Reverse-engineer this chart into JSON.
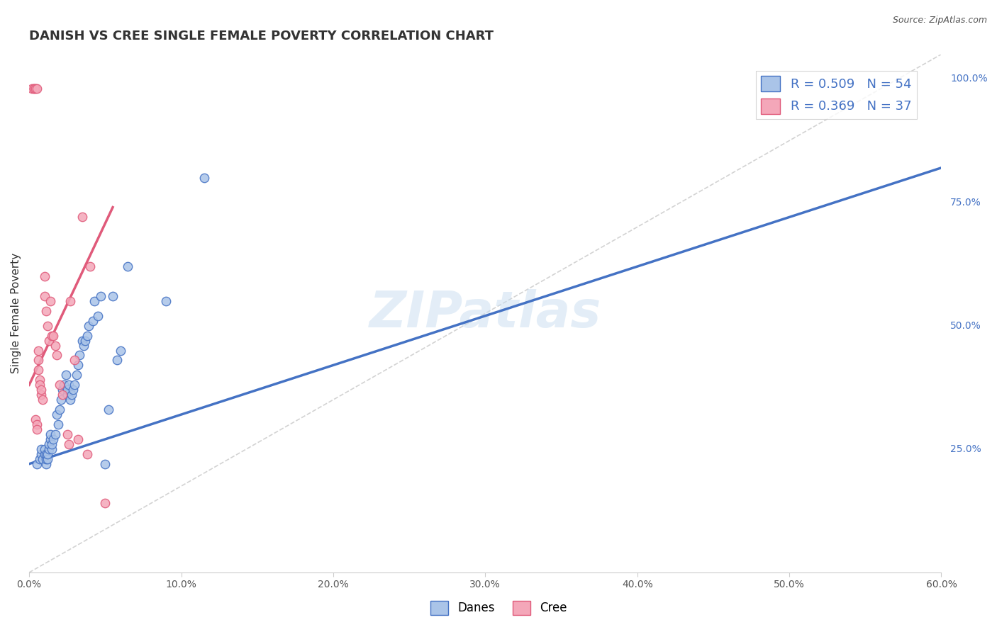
{
  "title": "DANISH VS CREE SINGLE FEMALE POVERTY CORRELATION CHART",
  "source": "Source: ZipAtlas.com",
  "ylabel": "Single Female Poverty",
  "watermark": "ZIPatlas",
  "legend_blue_label": "Danes",
  "legend_pink_label": "Cree",
  "blue_R": "0.509",
  "blue_N": "54",
  "pink_R": "0.369",
  "pink_N": "37",
  "blue_color": "#aac4e8",
  "pink_color": "#f4a7b9",
  "blue_line_color": "#4472c4",
  "pink_line_color": "#e05a7a",
  "diag_color": "#c8c8c8",
  "blue_scatter_x": [
    0.005,
    0.007,
    0.008,
    0.008,
    0.009,
    0.01,
    0.01,
    0.011,
    0.011,
    0.011,
    0.012,
    0.012,
    0.013,
    0.013,
    0.014,
    0.014,
    0.015,
    0.015,
    0.016,
    0.017,
    0.018,
    0.019,
    0.02,
    0.021,
    0.022,
    0.023,
    0.024,
    0.025,
    0.025,
    0.026,
    0.027,
    0.028,
    0.029,
    0.03,
    0.031,
    0.032,
    0.033,
    0.035,
    0.036,
    0.037,
    0.038,
    0.039,
    0.042,
    0.043,
    0.045,
    0.047,
    0.05,
    0.052,
    0.055,
    0.058,
    0.06,
    0.065,
    0.09,
    0.115
  ],
  "blue_scatter_y": [
    0.22,
    0.23,
    0.24,
    0.25,
    0.23,
    0.24,
    0.25,
    0.22,
    0.23,
    0.24,
    0.23,
    0.24,
    0.25,
    0.26,
    0.27,
    0.28,
    0.25,
    0.26,
    0.27,
    0.28,
    0.32,
    0.3,
    0.33,
    0.35,
    0.37,
    0.38,
    0.4,
    0.36,
    0.37,
    0.38,
    0.35,
    0.36,
    0.37,
    0.38,
    0.4,
    0.42,
    0.44,
    0.47,
    0.46,
    0.47,
    0.48,
    0.5,
    0.51,
    0.55,
    0.52,
    0.56,
    0.22,
    0.33,
    0.56,
    0.43,
    0.45,
    0.62,
    0.55,
    0.8
  ],
  "pink_scatter_x": [
    0.002,
    0.003,
    0.003,
    0.004,
    0.004,
    0.005,
    0.005,
    0.005,
    0.006,
    0.006,
    0.006,
    0.007,
    0.007,
    0.008,
    0.008,
    0.009,
    0.01,
    0.01,
    0.011,
    0.012,
    0.013,
    0.014,
    0.015,
    0.016,
    0.017,
    0.018,
    0.02,
    0.022,
    0.025,
    0.026,
    0.027,
    0.03,
    0.032,
    0.035,
    0.038,
    0.04,
    0.05
  ],
  "pink_scatter_y": [
    0.98,
    0.98,
    0.98,
    0.98,
    0.31,
    0.98,
    0.3,
    0.29,
    0.45,
    0.43,
    0.41,
    0.39,
    0.38,
    0.36,
    0.37,
    0.35,
    0.6,
    0.56,
    0.53,
    0.5,
    0.47,
    0.55,
    0.48,
    0.48,
    0.46,
    0.44,
    0.38,
    0.36,
    0.28,
    0.26,
    0.55,
    0.43,
    0.27,
    0.72,
    0.24,
    0.62,
    0.14
  ],
  "xlim": [
    0.0,
    0.6
  ],
  "ylim": [
    0.0,
    1.05
  ],
  "blue_line_x": [
    0.0,
    0.6
  ],
  "blue_line_y": [
    0.22,
    0.82
  ],
  "pink_line_x": [
    0.0,
    0.055
  ],
  "pink_line_y": [
    0.38,
    0.74
  ],
  "diag_line_x": [
    0.0,
    0.6
  ],
  "diag_line_y": [
    0.0,
    1.05
  ],
  "right_ytick_positions": [
    0.25,
    0.5,
    0.75,
    1.0
  ],
  "right_ytick_labels": [
    "25.0%",
    "50.0%",
    "75.0%",
    "100.0%"
  ],
  "xtick_positions": [
    0.0,
    0.1,
    0.2,
    0.3,
    0.4,
    0.5,
    0.6
  ],
  "xtick_labels": [
    "0.0%",
    "10.0%",
    "20.0%",
    "30.0%",
    "40.0%",
    "50.0%",
    "60.0%"
  ]
}
